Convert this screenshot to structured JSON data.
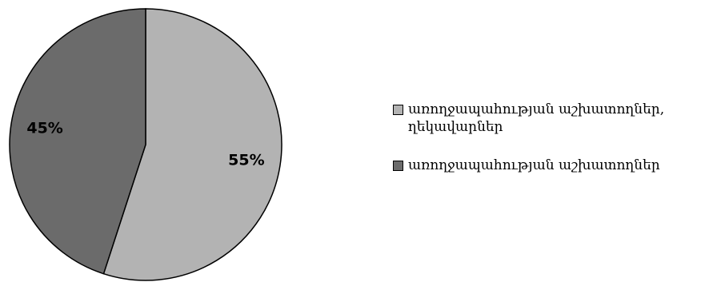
{
  "chart_data": {
    "type": "pie",
    "categories": [
      "առողջապահության աշխատողներ, ղեկավարներ",
      "առողջապահության աշխատողներ"
    ],
    "values": [
      55,
      45
    ],
    "data_labels": [
      "55%",
      "45%"
    ],
    "colors": [
      "#b3b3b3",
      "#6b6b6b"
    ],
    "start_angle_deg": 0,
    "direction": "clockwise",
    "legend_position": "right",
    "title": ""
  }
}
